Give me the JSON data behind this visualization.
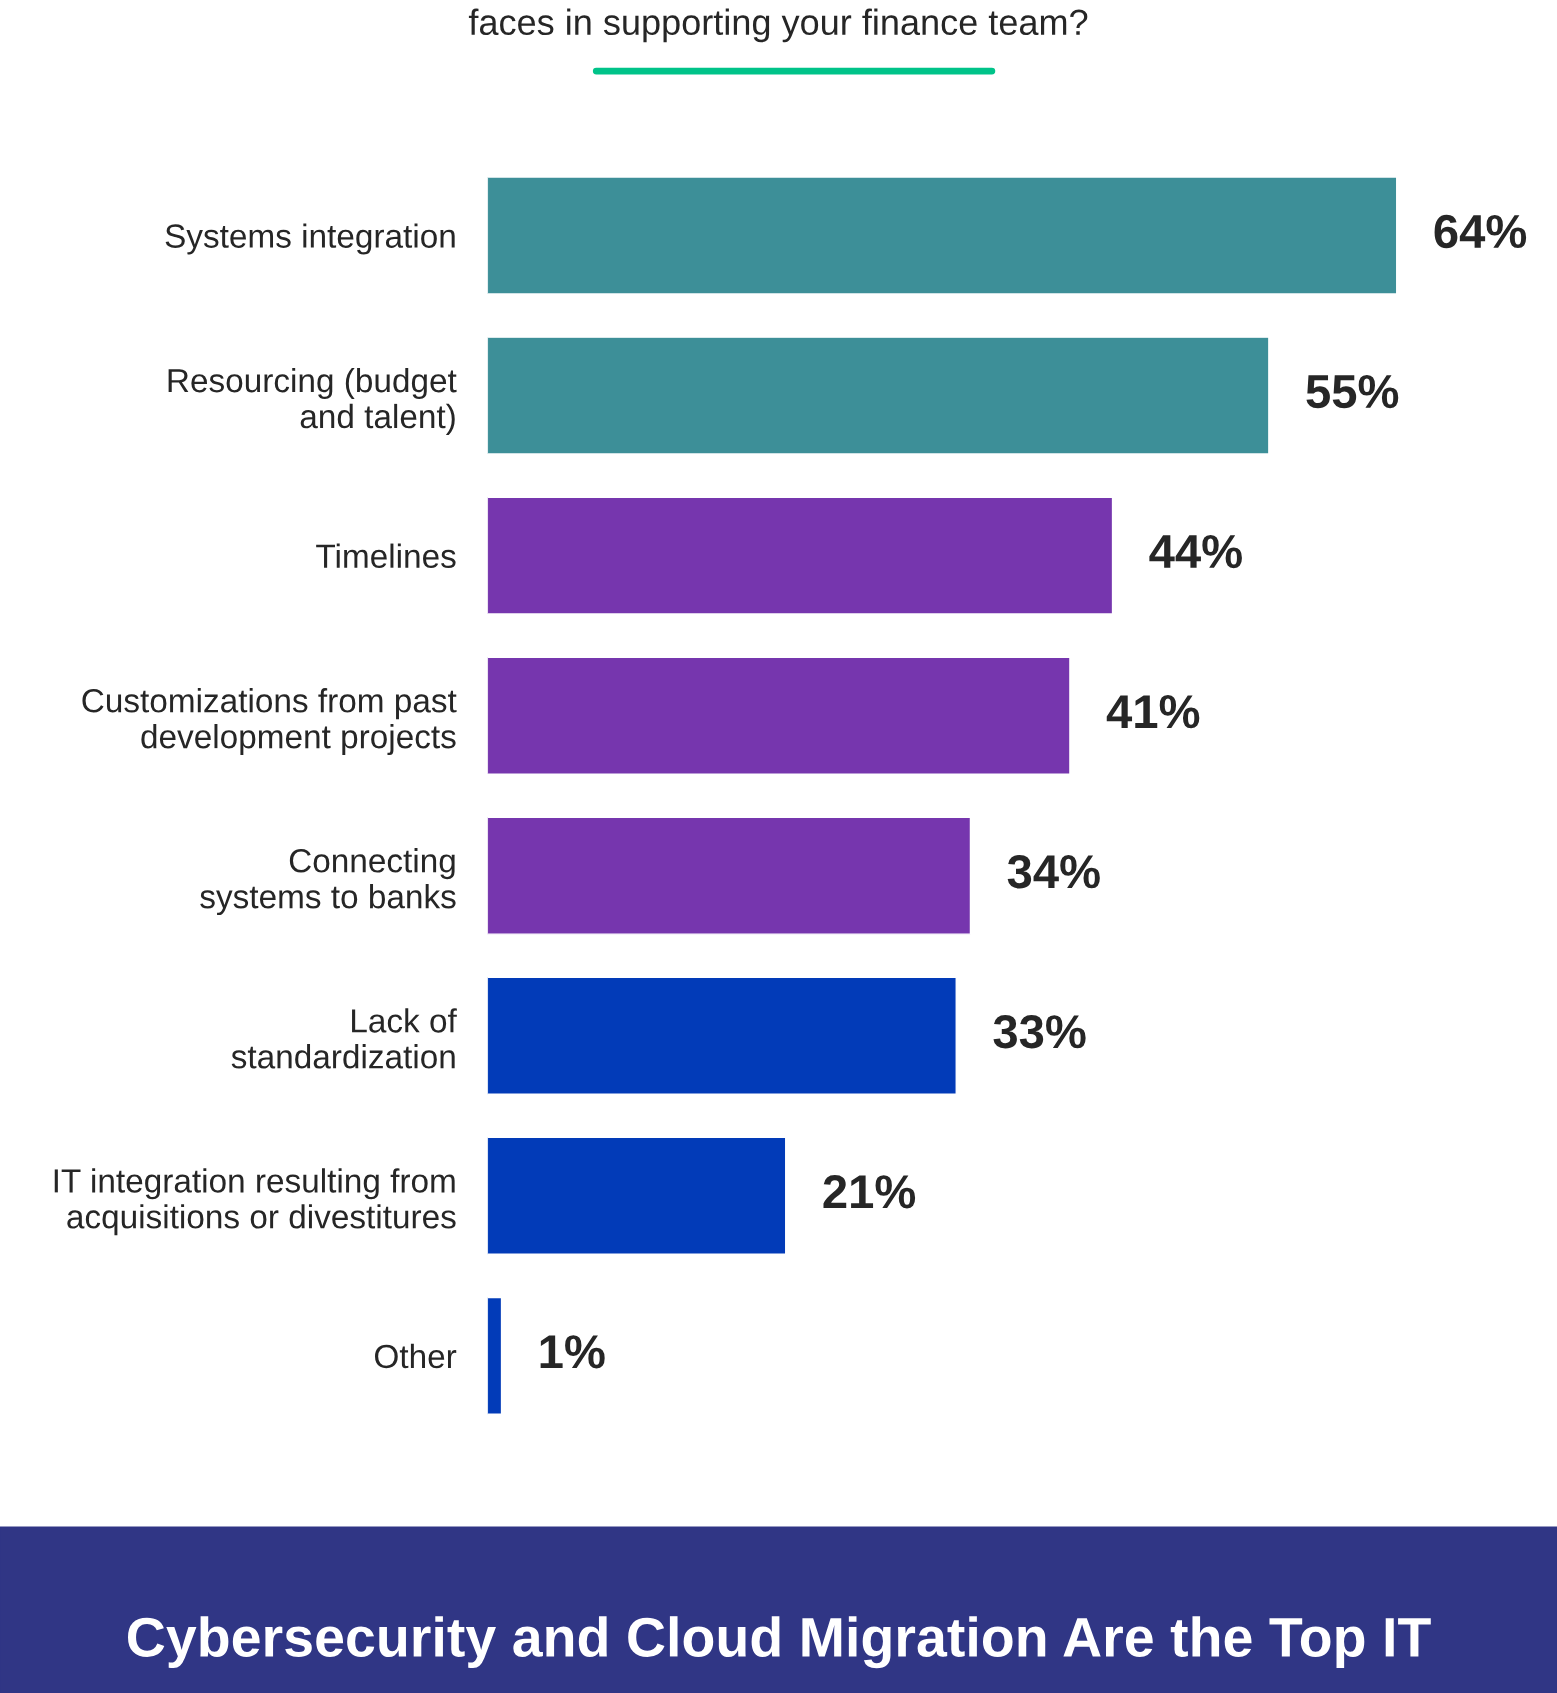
{
  "chart_data": {
    "type": "bar",
    "orientation": "horizontal",
    "title": "faces in supporting your finance team?",
    "categories": [
      "Systems integration",
      "Resourcing (budget\nand talent)",
      "Timelines",
      "Customizations from past\ndevelopment projects",
      "Connecting\nsystems to banks",
      "Lack of\nstandardization",
      "IT integration resulting from\nacquisitions or divestitures",
      "Other"
    ],
    "values": [
      64,
      55,
      44,
      41,
      34,
      33,
      21,
      1
    ],
    "colors": [
      "#3d8f98",
      "#3d8f98",
      "#7636ae",
      "#7636ae",
      "#7636ae",
      "#023bb8",
      "#023bb8",
      "#023bb8"
    ],
    "value_labels": [
      "64%",
      "55%",
      "44%",
      "41%",
      "34%",
      "33%",
      "21%",
      "1%"
    ],
    "annotations": [
      "Cybersecurity and Cloud Migration Are the Top IT"
    ]
  }
}
